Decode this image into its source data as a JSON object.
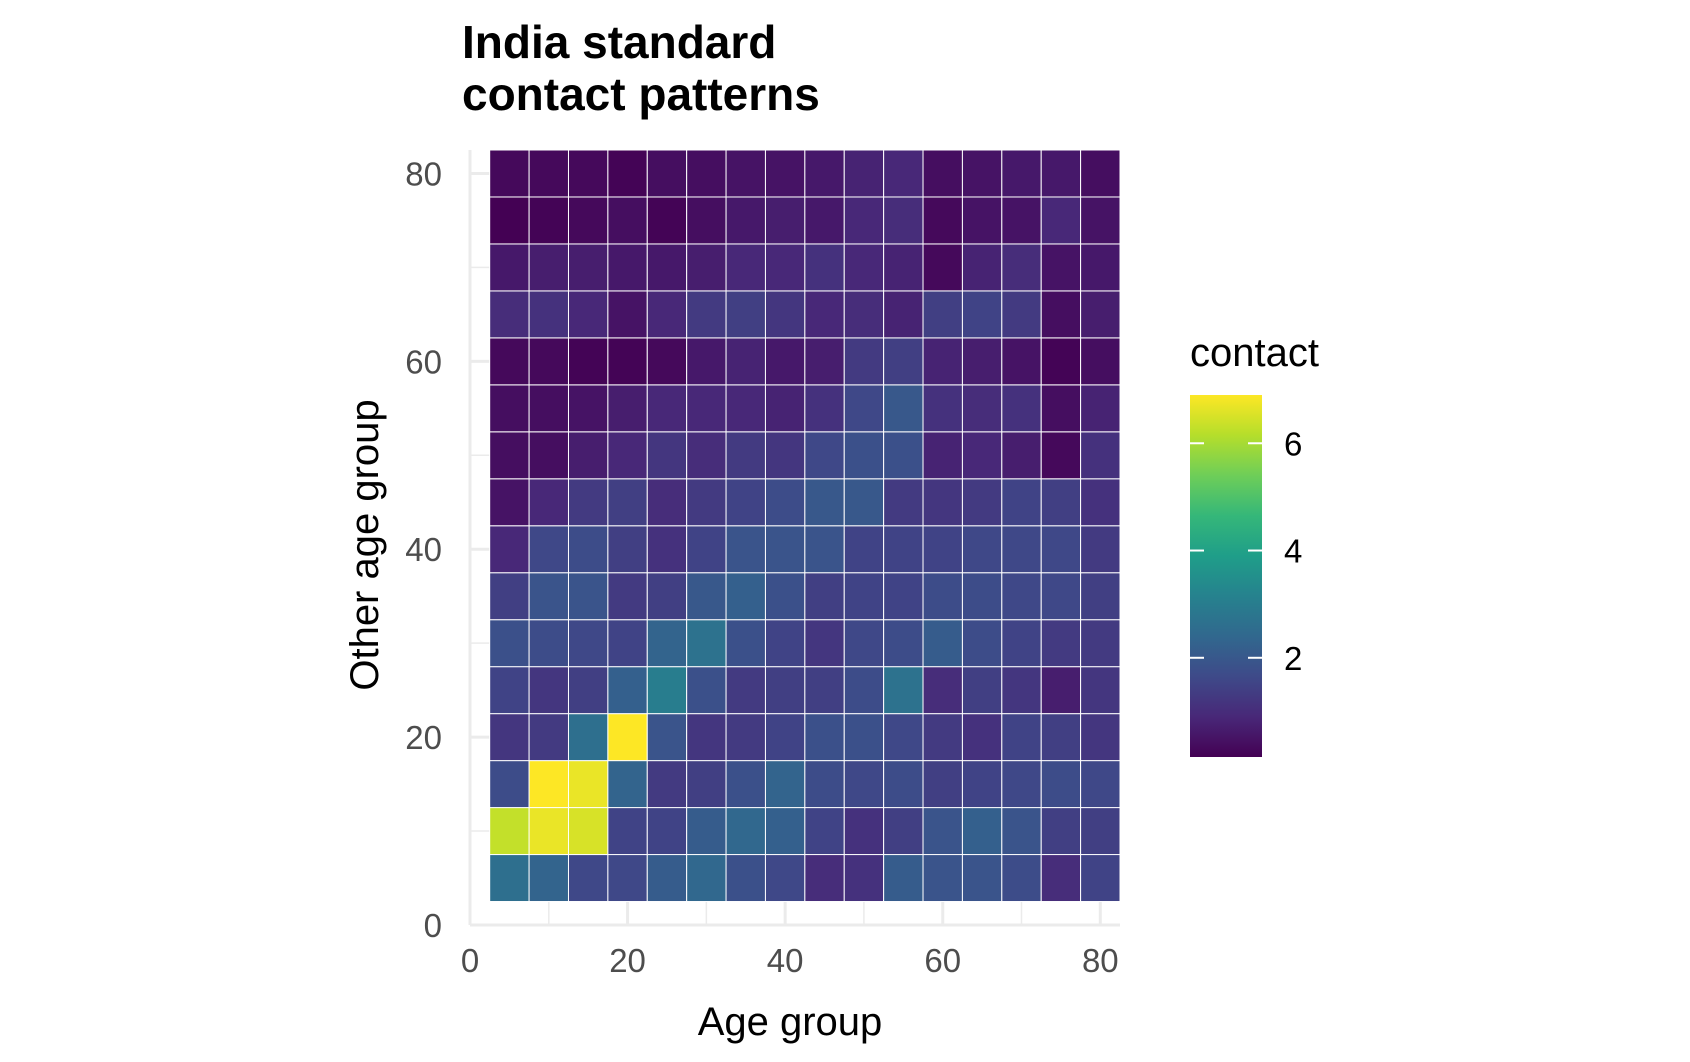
{
  "chart_data": {
    "type": "heatmap",
    "title_lines": [
      "India standard",
      "contact patterns"
    ],
    "xlabel": "Age group",
    "ylabel": "Other age group",
    "xlim": [
      0,
      82.5
    ],
    "ylim": [
      0,
      82.5
    ],
    "x_ticks": [
      0,
      20,
      40,
      60,
      80
    ],
    "y_ticks": [
      0,
      20,
      40,
      60,
      80
    ],
    "grid": true,
    "legend": {
      "title": "contact",
      "position": "right",
      "ticks": [
        2,
        4,
        6
      ],
      "min": 0.15,
      "max": 6.9
    },
    "x_centers": [
      5,
      10,
      15,
      20,
      25,
      30,
      35,
      40,
      45,
      50,
      55,
      60,
      65,
      70,
      75,
      80
    ],
    "y_centers": [
      5,
      10,
      15,
      20,
      25,
      30,
      35,
      40,
      45,
      50,
      55,
      60,
      65,
      70,
      75,
      80
    ],
    "values": [
      [
        2.6,
        2.3,
        1.6,
        1.6,
        2.1,
        2.4,
        1.8,
        1.6,
        1.0,
        1.1,
        2.1,
        1.9,
        1.9,
        1.7,
        1.0,
        1.5
      ],
      [
        6.3,
        6.7,
        6.5,
        1.5,
        1.5,
        2.1,
        2.4,
        2.2,
        1.5,
        1.1,
        1.4,
        1.9,
        2.2,
        1.9,
        1.4,
        1.4
      ],
      [
        1.7,
        6.9,
        6.7,
        2.3,
        1.3,
        1.4,
        1.8,
        2.3,
        1.7,
        1.6,
        1.7,
        1.4,
        1.5,
        1.6,
        1.7,
        1.6
      ],
      [
        1.2,
        1.3,
        2.6,
        6.9,
        1.9,
        1.2,
        1.3,
        1.5,
        1.8,
        1.8,
        1.6,
        1.3,
        1.1,
        1.5,
        1.4,
        1.2
      ],
      [
        1.5,
        1.2,
        1.4,
        2.2,
        3.0,
        1.8,
        1.3,
        1.4,
        1.4,
        1.7,
        2.7,
        1.0,
        1.4,
        1.2,
        0.7,
        1.2
      ],
      [
        1.8,
        1.7,
        1.6,
        1.5,
        2.3,
        2.7,
        1.8,
        1.5,
        1.2,
        1.6,
        1.7,
        2.1,
        1.7,
        1.5,
        1.3,
        1.3
      ],
      [
        1.4,
        1.9,
        1.9,
        1.3,
        1.4,
        2.0,
        2.2,
        1.8,
        1.4,
        1.5,
        1.5,
        1.7,
        1.7,
        1.6,
        1.6,
        1.4
      ],
      [
        0.9,
        1.6,
        1.7,
        1.4,
        1.1,
        1.5,
        1.9,
        1.9,
        1.9,
        1.5,
        1.5,
        1.5,
        1.6,
        1.6,
        1.6,
        1.3
      ],
      [
        0.5,
        0.9,
        1.3,
        1.4,
        1.0,
        1.3,
        1.5,
        1.7,
        2.0,
        2.0,
        1.3,
        1.2,
        1.3,
        1.5,
        1.4,
        1.1
      ],
      [
        0.4,
        0.4,
        0.7,
        0.9,
        1.2,
        1.0,
        1.3,
        1.2,
        1.6,
        1.8,
        1.8,
        0.8,
        0.9,
        0.7,
        0.3,
        1.1
      ],
      [
        0.4,
        0.4,
        0.5,
        0.7,
        0.9,
        0.9,
        0.9,
        0.8,
        1.1,
        1.6,
        2.0,
        1.1,
        1.0,
        1.1,
        0.4,
        0.8
      ],
      [
        0.3,
        0.3,
        0.2,
        0.2,
        0.3,
        0.6,
        0.8,
        0.6,
        0.7,
        1.3,
        1.4,
        0.8,
        0.7,
        0.5,
        0.2,
        0.4
      ],
      [
        1.0,
        1.1,
        0.9,
        0.5,
        0.9,
        1.3,
        1.4,
        1.2,
        0.9,
        1.0,
        0.8,
        1.4,
        1.5,
        1.3,
        0.4,
        0.7
      ],
      [
        0.6,
        0.7,
        0.7,
        0.6,
        0.6,
        0.7,
        0.9,
        0.9,
        1.1,
        0.9,
        0.8,
        0.3,
        0.8,
        1.0,
        0.5,
        0.6
      ],
      [
        0.15,
        0.2,
        0.3,
        0.4,
        0.2,
        0.4,
        0.6,
        0.7,
        0.6,
        0.9,
        1.0,
        0.3,
        0.5,
        0.5,
        0.9,
        0.5
      ],
      [
        0.3,
        0.3,
        0.3,
        0.2,
        0.4,
        0.4,
        0.5,
        0.5,
        0.6,
        0.8,
        0.9,
        0.4,
        0.5,
        0.6,
        0.6,
        0.4
      ]
    ]
  },
  "colors": {
    "viridis_stops": [
      "#440154",
      "#482878",
      "#3E4A89",
      "#31688E",
      "#26828E",
      "#1F9E89",
      "#35B779",
      "#6ECE58",
      "#B5DE2B",
      "#FDE725"
    ],
    "grid": "#EBEBEB",
    "tick_text": "#4D4D4D",
    "text": "#000000"
  }
}
